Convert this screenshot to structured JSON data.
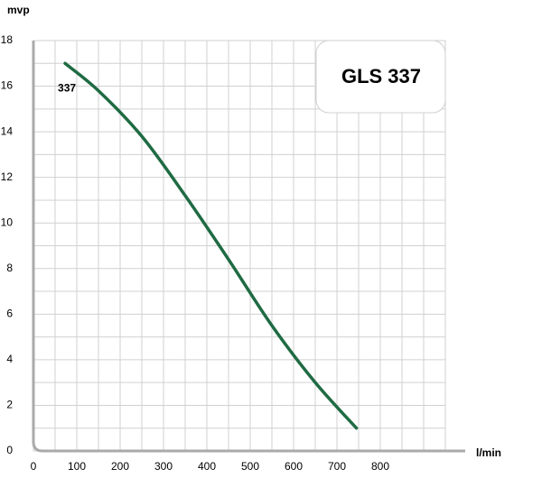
{
  "chart_data": {
    "type": "line",
    "title": "GLS 337",
    "y_label": "mvp",
    "x_label": "l/min",
    "xlim": [
      0,
      950
    ],
    "ylim": [
      0,
      18
    ],
    "xticks": [
      0,
      100,
      200,
      300,
      400,
      500,
      600,
      700,
      800
    ],
    "yticks": [
      0,
      2,
      4,
      6,
      8,
      10,
      12,
      14,
      16,
      18
    ],
    "xgrid": [
      50,
      100,
      150,
      200,
      250,
      300,
      350,
      400,
      450,
      500,
      550,
      600,
      650,
      700,
      750,
      800,
      850,
      900,
      950
    ],
    "ygrid": [
      1,
      2,
      3,
      4,
      5,
      6,
      7,
      8,
      9,
      10,
      11,
      12,
      13,
      14,
      15,
      16,
      17,
      18
    ],
    "series": [
      {
        "name": "337",
        "color": "#1f6b43",
        "x": [
          73,
          150,
          250,
          350,
          450,
          550,
          650,
          745
        ],
        "values": [
          17,
          15.8,
          13.8,
          11.2,
          8.4,
          5.5,
          3.0,
          1
        ]
      }
    ]
  }
}
